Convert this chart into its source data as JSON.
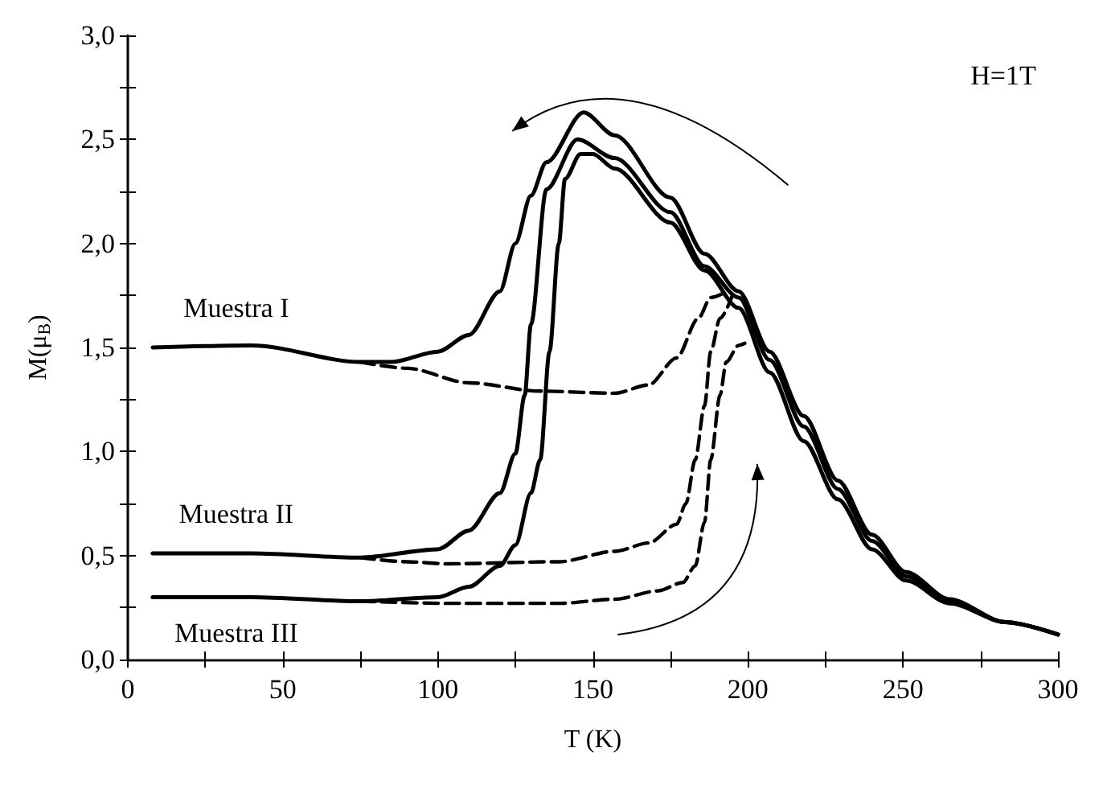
{
  "chart_data": {
    "type": "line",
    "xlabel": "T (K)",
    "ylabel": "M(μ$_{B}$)",
    "xlim": [
      0,
      300
    ],
    "ylim": [
      0,
      3
    ],
    "xticks": [
      0,
      {
        "value": 25,
        "label": null
      },
      50,
      {
        "value": 75,
        "label": null
      },
      100,
      {
        "value": 125,
        "label": null
      },
      150,
      {
        "value": 175,
        "label": null
      },
      200,
      {
        "value": 225,
        "label": null
      },
      250,
      {
        "value": 275,
        "label": null
      },
      300
    ],
    "yticks": [
      {
        "value": 0,
        "label": "0,0"
      },
      {
        "value": 0.25,
        "label": null
      },
      {
        "value": 0.5,
        "label": "0,5"
      },
      {
        "value": 0.75,
        "label": null
      },
      {
        "value": 1,
        "label": "1,0"
      },
      {
        "value": 1.25,
        "label": null
      },
      {
        "value": 1.5,
        "label": "1,5"
      },
      {
        "value": 1.75,
        "label": null
      },
      {
        "value": 2,
        "label": "2,0"
      },
      {
        "value": 2.25,
        "label": null
      },
      {
        "value": 2.5,
        "label": "2,5"
      },
      {
        "value": 2.75,
        "label": null
      },
      {
        "value": 3,
        "label": "3,0"
      }
    ],
    "grid": false,
    "legend": false,
    "marker": "none",
    "annotations": [
      "H=1T"
    ],
    "series": [
      {
        "name": "Muestra I",
        "color": "#000000",
        "line_style": "solid",
        "x": [
          8,
          40,
          75,
          85,
          100,
          110,
          120,
          125,
          130,
          135,
          147,
          157,
          175,
          186,
          197,
          207,
          218,
          229,
          240,
          251,
          265,
          283,
          300
        ],
        "values": [
          1.5,
          1.51,
          1.43,
          1.43,
          1.48,
          1.56,
          1.77,
          2.0,
          2.23,
          2.39,
          2.63,
          2.52,
          2.22,
          1.95,
          1.77,
          1.48,
          1.17,
          0.86,
          0.6,
          0.42,
          0.29,
          0.18,
          0.12
        ]
      },
      {
        "color": "#000000",
        "line_style": "dashed",
        "x": [
          75,
          90,
          110,
          133,
          157,
          168,
          177,
          184,
          188,
          192
        ],
        "values": [
          1.43,
          1.4,
          1.33,
          1.29,
          1.28,
          1.32,
          1.45,
          1.64,
          1.74,
          1.76
        ]
      },
      {
        "name": "Muestra II",
        "color": "#000000",
        "line_style": "solid",
        "x": [
          8,
          40,
          75,
          100,
          110,
          120,
          125,
          128,
          130,
          135,
          145,
          157,
          175,
          186,
          197,
          207,
          218,
          229,
          240,
          251,
          265,
          283,
          300
        ],
        "values": [
          0.51,
          0.51,
          0.49,
          0.53,
          0.62,
          0.8,
          0.99,
          1.27,
          1.61,
          2.26,
          2.5,
          2.41,
          2.15,
          1.89,
          1.74,
          1.44,
          1.12,
          0.82,
          0.57,
          0.4,
          0.28,
          0.18,
          0.12
        ]
      },
      {
        "color": "#000000",
        "line_style": "dashed",
        "x": [
          75,
          90,
          103,
          139,
          157,
          168,
          177,
          180,
          183,
          186,
          188,
          191,
          195
        ],
        "values": [
          0.49,
          0.47,
          0.46,
          0.47,
          0.52,
          0.56,
          0.65,
          0.75,
          0.96,
          1.22,
          1.48,
          1.64,
          1.75
        ]
      },
      {
        "name": "Muestra III",
        "color": "#000000",
        "line_style": "solid",
        "x": [
          8,
          40,
          75,
          100,
          110,
          120,
          125,
          130,
          133,
          136,
          139,
          141,
          146,
          150,
          157,
          175,
          186,
          197,
          207,
          218,
          229,
          240,
          251,
          265,
          283,
          300
        ],
        "values": [
          0.3,
          0.3,
          0.28,
          0.3,
          0.35,
          0.45,
          0.55,
          0.8,
          0.96,
          1.48,
          2.0,
          2.31,
          2.43,
          2.43,
          2.36,
          2.1,
          1.87,
          1.69,
          1.38,
          1.05,
          0.77,
          0.53,
          0.38,
          0.27,
          0.18,
          0.12
        ]
      },
      {
        "color": "#000000",
        "line_style": "dashed",
        "x": [
          75,
          103,
          139,
          157,
          171,
          179,
          183,
          186,
          188,
          191,
          193,
          197,
          199
        ],
        "values": [
          0.28,
          0.27,
          0.27,
          0.29,
          0.33,
          0.37,
          0.45,
          0.66,
          0.96,
          1.27,
          1.43,
          1.51,
          1.52
        ]
      }
    ]
  }
}
